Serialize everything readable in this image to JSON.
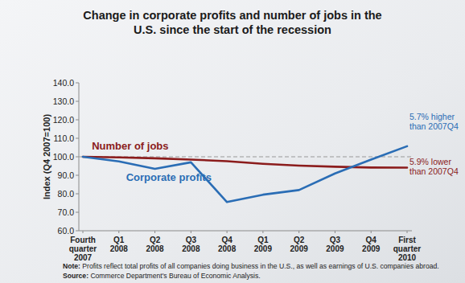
{
  "chart_data": {
    "type": "line",
    "title": "Change in corporate profits and number of jobs in the U.S. since the start of the recession",
    "y_label": "Index (Q4 2007=100)",
    "categories": [
      "Fourth quarter 2007",
      "Q1 2008",
      "Q2 2008",
      "Q3 2008",
      "Q4 2008",
      "Q1 2009",
      "Q2 2009",
      "Q3 2009",
      "Q4 2009",
      "First quarter 2010"
    ],
    "series": [
      {
        "name": "Number of jobs",
        "color": "#8b1c1c",
        "values": [
          100,
          99.7,
          99.2,
          98.5,
          97.6,
          96.2,
          95.2,
          94.6,
          94.2,
          94.1
        ]
      },
      {
        "name": "Corporate profits",
        "color": "#2a6db5",
        "values": [
          100,
          97.5,
          93.5,
          97.0,
          75.5,
          79.5,
          82.0,
          91.0,
          98.5,
          105.7
        ]
      }
    ],
    "annotations": [
      "5.9% lower than 2007Q4",
      "5.7% higher than 2007Q4"
    ],
    "ylim": [
      60,
      140
    ],
    "yticks": [
      {
        "value": 60,
        "label": "60.0"
      },
      {
        "value": 70,
        "label": "70.0"
      },
      {
        "value": 80,
        "label": "80.0"
      },
      {
        "value": 90,
        "label": "90.0"
      },
      {
        "value": 100,
        "label": "100.0"
      },
      {
        "value": 110,
        "label": "110.0"
      },
      {
        "value": 120,
        "label": "120.0"
      },
      {
        "value": 130,
        "label": "130.0"
      },
      {
        "value": 140,
        "label": "140.0"
      }
    ],
    "grid": false,
    "note": "Note: Profits reflect total profits of all companies doing business in the U.S., as well as earnings of U.S. companies abroad.",
    "source": "Source: Commerce Department's Bureau of Economic Analysis."
  }
}
